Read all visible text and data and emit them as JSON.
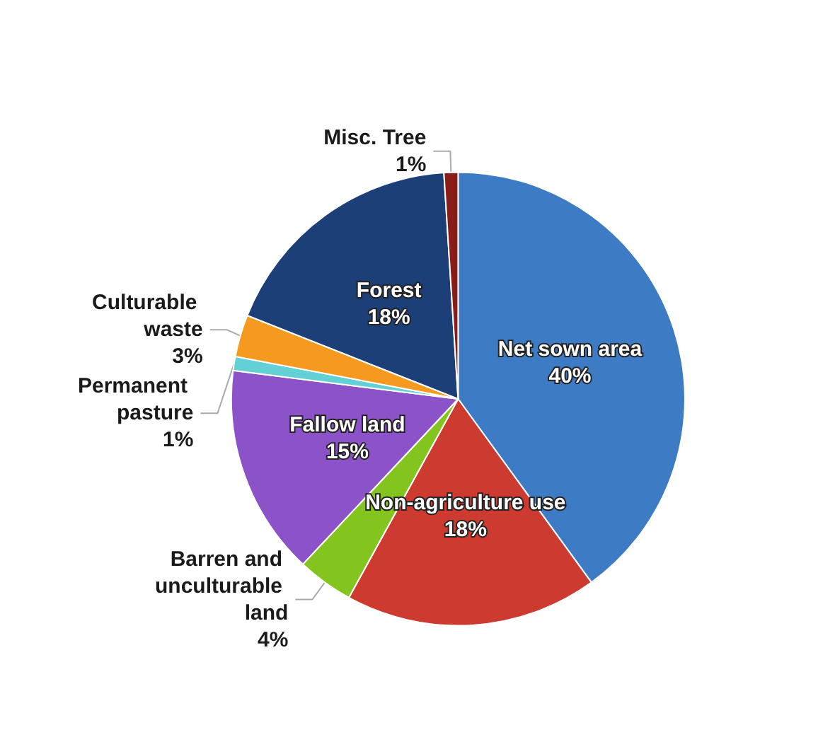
{
  "chart_data": {
    "type": "pie",
    "categories": [
      "Net sown area",
      "Non-agriculture use",
      "Barren and unculturable land",
      "Fallow land",
      "Permanent pasture",
      "Culturable waste",
      "Forest",
      "Misc. Tree"
    ],
    "values": [
      40,
      18,
      4,
      15,
      1,
      3,
      18,
      1
    ],
    "value_labels": [
      "40%",
      "18%",
      "4%",
      "15%",
      "1%",
      "3%",
      "18%",
      "1%"
    ],
    "colors": [
      "#3d7cc4",
      "#cc3a30",
      "#84c41e",
      "#8c52c8",
      "#62d0d4",
      "#f59a1e",
      "#1c3f78",
      "#8a1c1a"
    ],
    "legend": false
  }
}
